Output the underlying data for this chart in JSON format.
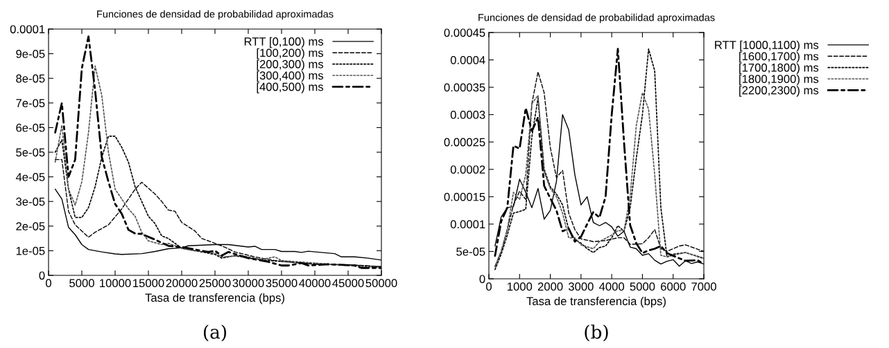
{
  "chart_data": [
    {
      "type": "line",
      "title": "Funciones de densidad de probabilidad aproximadas",
      "xlabel": "Tasa de transferencia (bps)",
      "annotations": [
        "(a)"
      ],
      "legend": "top right",
      "grid": false,
      "xlim": [
        0,
        50000
      ],
      "xticks": [
        0,
        5000,
        10000,
        15000,
        20000,
        25000,
        30000,
        35000,
        40000,
        45000,
        50000
      ],
      "ylim": [
        0,
        0.0001
      ],
      "yticks": [
        0,
        {
          "value": 1e-05,
          "label": "1e-05"
        },
        {
          "value": 2e-05,
          "label": "2e-05"
        },
        {
          "value": 3e-05,
          "label": "3e-05"
        },
        {
          "value": 4e-05,
          "label": "4e-05"
        },
        {
          "value": 5e-05,
          "label": "5e-05"
        },
        {
          "value": 6e-05,
          "label": "6e-05"
        },
        {
          "value": 7e-05,
          "label": "7e-05"
        },
        {
          "value": 8e-05,
          "label": "8e-05"
        },
        {
          "value": 9e-05,
          "label": "9e-05"
        },
        {
          "value": 0.0001,
          "label": "0.0001"
        }
      ],
      "series": [
        {
          "name": "RTT [0,100) ms",
          "color": "#000000",
          "line_style": "solid",
          "x": [
            1000,
            2000,
            3000,
            4000,
            5000,
            6000,
            8000,
            10000,
            11000,
            14000,
            16000,
            18000,
            20000,
            21000,
            25000,
            27000,
            30000,
            31000,
            32000,
            34000,
            35000,
            37000,
            38000,
            39000,
            43000,
            44000,
            46000,
            48000,
            50000
          ],
          "values": [
            3.5e-05,
            3.1e-05,
            1.95e-05,
            1.65e-05,
            1.25e-05,
            1.05e-05,
            9.5e-06,
            8.7e-06,
            8.5e-06,
            8.8e-06,
            9.7e-06,
            1.08e-05,
            1.12e-05,
            1.2e-05,
            1.25e-05,
            1.25e-05,
            1.15e-05,
            1.18e-05,
            1.05e-05,
            1.05e-05,
            9.7e-06,
            9.7e-06,
            9.3e-06,
            9.8e-06,
            8.8e-06,
            7.5e-06,
            7.5e-06,
            7e-06,
            6.2e-06
          ]
        },
        {
          "name": "[100,200) ms",
          "color": "#000000",
          "line_style": "dashed",
          "x": [
            1000,
            2000,
            3000,
            4000,
            6000,
            7000,
            9000,
            11000,
            13000,
            14000,
            16000,
            17000,
            18000,
            19000,
            20000,
            22000,
            23000,
            26000,
            28000,
            31000,
            34000,
            38000,
            42000,
            46000,
            50000
          ],
          "values": [
            4.7e-05,
            4.7e-05,
            2.6e-05,
            2.05e-05,
            1.55e-05,
            1.75e-05,
            2.05e-05,
            2.7e-05,
            3.5e-05,
            3.78e-05,
            3.3e-05,
            3e-05,
            2.65e-05,
            2.6e-05,
            2.15e-05,
            1.8e-05,
            1.5e-05,
            1.2e-05,
            9.5e-06,
            7.5e-06,
            6e-06,
            5e-06,
            4.5e-06,
            4.2e-06,
            3.5e-06
          ]
        },
        {
          "name": "[200,300) ms",
          "color": "#000000",
          "line_style": "dotted",
          "x": [
            1000,
            2000,
            3000,
            4000,
            5000,
            6000,
            7000,
            8000,
            9000,
            10000,
            11000,
            12000,
            13000,
            15000,
            16000,
            17000,
            18000,
            19000,
            20000,
            22000,
            25000,
            26000,
            28000,
            30000,
            33000,
            36000,
            40000,
            45000,
            50000
          ],
          "values": [
            5e-05,
            5.5e-05,
            3.5e-05,
            2.35e-05,
            2.35e-05,
            2.75e-05,
            3.6e-05,
            4.8e-05,
            5.65e-05,
            5.65e-05,
            5.2e-05,
            4.6e-05,
            3.6e-05,
            2.4e-05,
            2.1e-05,
            1.6e-05,
            1.5e-05,
            1.3e-05,
            1.1e-05,
            1e-05,
            8.5e-06,
            7e-06,
            8e-06,
            7e-06,
            6e-06,
            5.5e-06,
            4.5e-06,
            4.2e-06,
            3.5e-06
          ]
        },
        {
          "name": "[300,400) ms",
          "color": "#555555",
          "line_style": "dotted",
          "x": [
            1000,
            2000,
            3000,
            4000,
            5000,
            6000,
            7000,
            8000,
            9000,
            10000,
            12000,
            13000,
            14000,
            15000,
            17000,
            18000,
            20000,
            22000,
            25000,
            26000,
            29000,
            32000,
            34000,
            35000,
            40000,
            45000,
            50000
          ],
          "values": [
            4.6e-05,
            6.1e-05,
            3.5e-05,
            2.85e-05,
            3.8e-05,
            5.8e-05,
            8.5e-05,
            7.3e-05,
            5e-05,
            3.5e-05,
            2.7e-05,
            2.4e-05,
            1.75e-05,
            1.4e-05,
            1.25e-05,
            1.3e-05,
            1.1e-05,
            1e-05,
            9e-06,
            7.5e-06,
            8e-06,
            6.5e-06,
            7.5e-06,
            6e-06,
            5e-06,
            4e-06,
            3e-06
          ]
        },
        {
          "name": "[400,500) ms",
          "color": "#000000",
          "line_style": "dashdot",
          "x": [
            1000,
            2000,
            3000,
            4000,
            5000,
            6000,
            7000,
            8000,
            9000,
            10000,
            11000,
            12000,
            13000,
            14000,
            16000,
            18000,
            20000,
            22000,
            24000,
            25000,
            26000,
            27000,
            30000,
            33000,
            35000,
            36000,
            38000,
            39000,
            42000,
            46000,
            47000,
            50000
          ],
          "values": [
            5.8e-05,
            7e-05,
            4e-05,
            4.7e-05,
            8.4e-05,
            9.7e-05,
            7.5e-05,
            4.8e-05,
            3.8e-05,
            2.9e-05,
            2.5e-05,
            1.85e-05,
            1.7e-05,
            1.68e-05,
            1.45e-05,
            1.2e-05,
            1.15e-05,
            1.05e-05,
            9.5e-06,
            1e-05,
            8e-06,
            9.5e-06,
            7e-06,
            5.5e-06,
            4e-06,
            4e-06,
            5e-06,
            4e-06,
            4.5e-06,
            4e-06,
            3e-06,
            3e-06
          ]
        }
      ]
    },
    {
      "type": "line",
      "title": "Funciones de densidad de probabilidad aproximadas",
      "xlabel": "Tasa de transferencia (bps)",
      "annotations": [
        "(b)"
      ],
      "legend": "right",
      "grid": false,
      "xlim": [
        0,
        7000
      ],
      "xticks": [
        0,
        1000,
        2000,
        3000,
        4000,
        5000,
        6000,
        7000
      ],
      "ylim": [
        0,
        0.00045
      ],
      "yticks": [
        0,
        {
          "value": 5e-05,
          "label": "5e-05"
        },
        0.0001,
        0.00015,
        0.0002,
        0.00025,
        0.0003,
        0.00035,
        0.0004,
        0.00045
      ],
      "series": [
        {
          "name": "RTT [1000,1100) ms",
          "color": "#000000",
          "line_style": "solid",
          "x": [
            200,
            400,
            600,
            800,
            1000,
            1200,
            1400,
            1600,
            1800,
            2000,
            2200,
            2400,
            2600,
            2800,
            3000,
            3200,
            3400,
            3600,
            3800,
            4000,
            4200,
            4400,
            4600,
            4800,
            5000,
            5200,
            5400,
            5600,
            5800,
            6000,
            6200,
            6400,
            6600,
            6800,
            7000
          ],
          "values": [
            6e-05,
            0.000113,
            0.00013,
            0.000132,
            0.000182,
            0.000158,
            0.00013,
            0.000165,
            0.000109,
            0.000125,
            0.000178,
            0.0003,
            0.000272,
            0.00019,
            0.000135,
            0.00015,
            0.000103,
            9.7e-05,
            0.000103,
            9.5e-05,
            7.8e-05,
            8.7e-05,
            5.8e-05,
            5.5e-05,
            4.3e-05,
            4.6e-05,
            3.4e-05,
            2.7e-05,
            3.2e-05,
            3.5e-05,
            2.3e-05,
            3.3e-05,
            2.8e-05,
            3.1e-05,
            2.7e-05
          ]
        },
        {
          "name": "[1600,1700) ms",
          "color": "#000000",
          "line_style": "dashed",
          "x": [
            200,
            400,
            600,
            800,
            1000,
            1200,
            1400,
            1600,
            1800,
            2000,
            2200,
            2400,
            2600,
            2800,
            3000,
            3400,
            3800,
            4200,
            4400,
            4600,
            5000,
            5200,
            5400,
            5600,
            5800,
            6200,
            6400,
            7000
          ],
          "values": [
            2.3e-05,
            5e-05,
            9e-05,
            0.000135,
            0.00016,
            0.000145,
            0.00032,
            0.000378,
            0.00034,
            0.00024,
            0.000185,
            0.000198,
            0.00012,
            9e-05,
            7.3e-05,
            6.8e-05,
            7e-05,
            7.5e-05,
            7.5e-05,
            6.3e-05,
            6.4e-05,
            7.5e-05,
            9e-05,
            5.5e-05,
            5e-05,
            6e-05,
            6.2e-05,
            5e-05
          ]
        },
        {
          "name": "[1700,1800) ms",
          "color": "#000000",
          "line_style": "dotted",
          "x": [
            200,
            400,
            600,
            800,
            1000,
            1200,
            1400,
            1600,
            1800,
            2000,
            2200,
            2400,
            2600,
            2800,
            3000,
            3200,
            3400,
            3600,
            3800,
            4000,
            4200,
            4400,
            4600,
            4800,
            5000,
            5200,
            5400,
            5600,
            5800,
            6000,
            6400,
            7000
          ],
          "values": [
            1.7e-05,
            4.5e-05,
            8e-05,
            0.00012,
            0.000123,
            0.000127,
            0.00026,
            0.00033,
            0.0002,
            0.000168,
            0.000155,
            0.000135,
            9e-05,
            7.2e-05,
            6.5e-05,
            5.5e-05,
            4.8e-05,
            5.7e-05,
            6e-05,
            7.5e-05,
            9.7e-05,
            8.7e-05,
            0.00013,
            0.00022,
            0.0003,
            0.00042,
            0.00038,
            0.00013,
            4e-05,
            4.5e-05,
            4.8e-05,
            3.7e-05
          ]
        },
        {
          "name": "[1800,1900) ms",
          "color": "#555555",
          "line_style": "dotted",
          "x": [
            200,
            400,
            600,
            800,
            1000,
            1200,
            1400,
            1600,
            1800,
            2000,
            2200,
            2400,
            2600,
            2800,
            3000,
            3400,
            3600,
            4000,
            4200,
            4400,
            4600,
            4800,
            5000,
            5200,
            5400,
            5600,
            5800,
            6000,
            6400,
            7000
          ],
          "values": [
            2.2e-05,
            5e-05,
            9e-05,
            0.000158,
            0.000145,
            0.00019,
            0.00032,
            0.000335,
            0.000195,
            0.000165,
            0.00015,
            0.00012,
            7.5e-05,
            7.5e-05,
            6.2e-05,
            5.5e-05,
            6.8e-05,
            8e-05,
            8.8e-05,
            8.8e-05,
            0.00015,
            0.00028,
            0.00034,
            0.00031,
            0.00019,
            4.3e-05,
            4e-05,
            4.3e-05,
            4.8e-05,
            3.8e-05
          ]
        },
        {
          "name": "[2200,2300) ms",
          "color": "#000000",
          "line_style": "dashdot",
          "x": [
            200,
            400,
            600,
            800,
            1000,
            1200,
            1400,
            1600,
            1800,
            2000,
            2200,
            2400,
            2600,
            2800,
            3000,
            3200,
            3400,
            3600,
            3800,
            4000,
            4200,
            4400,
            4600,
            4800,
            5000,
            5200,
            5400,
            5600,
            5800,
            6000,
            6400,
            6800,
            7000
          ],
          "values": [
            4.2e-05,
            0.000105,
            0.00013,
            0.000243,
            0.000238,
            0.000312,
            0.00027,
            0.000295,
            0.00017,
            0.000147,
            0.000125,
            8.7e-05,
            9.2e-05,
            6.8e-05,
            7.7e-05,
            0.0001,
            0.000122,
            0.000112,
            0.00015,
            0.0003,
            0.00042,
            0.00025,
            9.8e-05,
            6.5e-05,
            4.7e-05,
            5.2e-05,
            5.5e-05,
            6e-05,
            4.7e-05,
            4.2e-05,
            3.3e-05,
            3.4e-05,
            2.7e-05
          ]
        }
      ]
    }
  ]
}
